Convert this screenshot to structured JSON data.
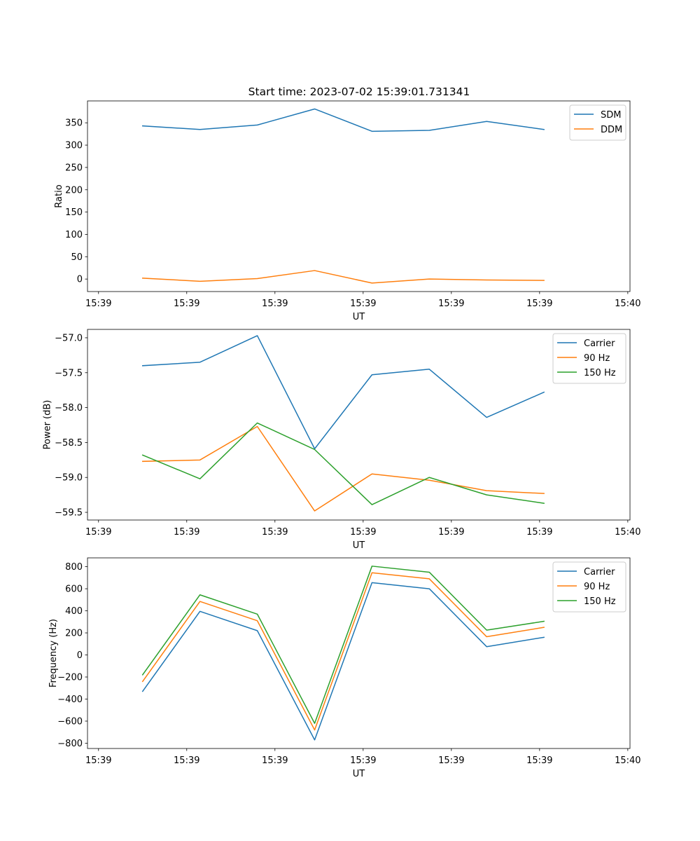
{
  "figure_title": "Start time: 2023-07-02 15:39:01.731341",
  "chart_data": [
    {
      "type": "line",
      "title": "Start time: 2023-07-02 15:39:01.731341",
      "xlabel": "UT",
      "ylabel": "Ratio",
      "x": [
        0.5,
        1.15,
        1.8,
        2.45,
        3.1,
        3.75,
        4.4,
        5.05
      ],
      "xlim": [
        -0.125,
        6.025
      ],
      "xticks": [
        0,
        1,
        2,
        3,
        4,
        5,
        6
      ],
      "xticklabels": [
        "15:39",
        "15:39",
        "15:39",
        "15:39",
        "15:39",
        "15:39",
        "15:40"
      ],
      "ylim": [
        -28,
        399
      ],
      "yticks": [
        0,
        50,
        100,
        150,
        200,
        250,
        300,
        350
      ],
      "yticklabels": [
        "0",
        "50",
        "100",
        "150",
        "200",
        "250",
        "300",
        "350"
      ],
      "legend": "top-right",
      "series": [
        {
          "name": "SDM",
          "color": "#1f77b4",
          "values": [
            343,
            335,
            345,
            381,
            331,
            333,
            353,
            335
          ]
        },
        {
          "name": "DDM",
          "color": "#ff7f0e",
          "values": [
            2,
            -5,
            1,
            19,
            -9,
            0,
            -2,
            -3
          ]
        }
      ]
    },
    {
      "type": "line",
      "title": "",
      "xlabel": "UT",
      "ylabel": "Power (dB)",
      "x": [
        0.5,
        1.15,
        1.8,
        2.45,
        3.1,
        3.75,
        4.4,
        5.05
      ],
      "xlim": [
        -0.125,
        6.025
      ],
      "xticks": [
        0,
        1,
        2,
        3,
        4,
        5,
        6
      ],
      "xticklabels": [
        "15:39",
        "15:39",
        "15:39",
        "15:39",
        "15:39",
        "15:39",
        "15:40"
      ],
      "ylim": [
        -59.61,
        -56.88
      ],
      "yticks": [
        -59.5,
        -59.0,
        -58.5,
        -58.0,
        -57.5,
        -57.0
      ],
      "yticklabels": [
        "−59.5",
        "−59.0",
        "−58.5",
        "−58.0",
        "−57.5",
        "−57.0"
      ],
      "legend": "top-right",
      "series": [
        {
          "name": "Carrier",
          "color": "#1f77b4",
          "values": [
            -57.4,
            -57.35,
            -56.97,
            -58.59,
            -57.53,
            -57.45,
            -58.14,
            -57.78
          ]
        },
        {
          "name": "90 Hz",
          "color": "#ff7f0e",
          "values": [
            -58.77,
            -58.75,
            -58.27,
            -59.48,
            -58.95,
            -59.04,
            -59.19,
            -59.23
          ]
        },
        {
          "name": "150 Hz",
          "color": "#2ca02c",
          "values": [
            -58.68,
            -59.02,
            -58.22,
            -58.6,
            -59.39,
            -59.0,
            -59.25,
            -59.37
          ]
        }
      ]
    },
    {
      "type": "line",
      "title": "",
      "xlabel": "UT",
      "ylabel": "Frequency (Hz)",
      "x": [
        0.5,
        1.15,
        1.8,
        2.45,
        3.1,
        3.75,
        4.4,
        5.05
      ],
      "xlim": [
        -0.125,
        6.025
      ],
      "xticks": [
        0,
        1,
        2,
        3,
        4,
        5,
        6
      ],
      "xticklabels": [
        "15:39",
        "15:39",
        "15:39",
        "15:39",
        "15:39",
        "15:39",
        "15:40"
      ],
      "ylim": [
        -848,
        880
      ],
      "yticks": [
        -800,
        -600,
        -400,
        -200,
        0,
        200,
        400,
        600,
        800
      ],
      "yticklabels": [
        "−800",
        "−600",
        "−400",
        "−200",
        "0",
        "200",
        "400",
        "600",
        "800"
      ],
      "legend": "top-right",
      "series": [
        {
          "name": "Carrier",
          "color": "#1f77b4",
          "values": [
            -330,
            395,
            220,
            -770,
            655,
            600,
            75,
            160
          ]
        },
        {
          "name": "90 Hz",
          "color": "#ff7f0e",
          "values": [
            -240,
            485,
            310,
            -680,
            745,
            690,
            165,
            250
          ]
        },
        {
          "name": "150 Hz",
          "color": "#2ca02c",
          "values": [
            -180,
            545,
            370,
            -620,
            805,
            750,
            225,
            305
          ]
        }
      ]
    }
  ]
}
